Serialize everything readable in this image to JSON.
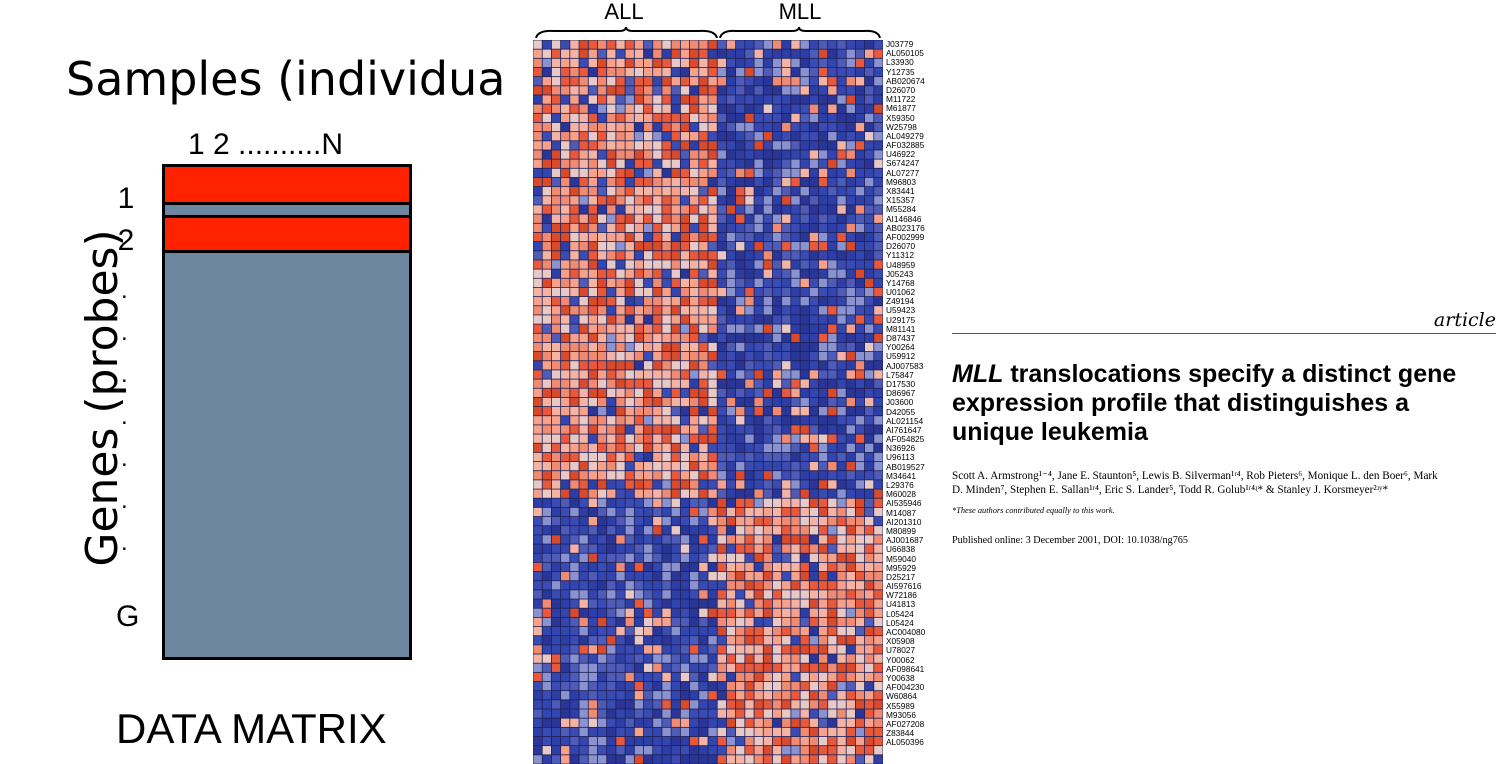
{
  "data_matrix": {
    "title": "Samples (individuals",
    "sample_axis": "1 2 ..........N",
    "genes_label": "Genes (probes)",
    "row_labels": [
      "1",
      "2",
      ".",
      ".",
      ".",
      ".",
      ".",
      ".",
      ".",
      "G"
    ],
    "caption": "DATA MATRIX",
    "colors": {
      "highlight_row": "#ff2200",
      "matrix_fill": "#6c86a0"
    }
  },
  "heatmap": {
    "groups": [
      "ALL",
      "MLL"
    ],
    "probes": [
      "J03779",
      "AL050105",
      "L33930",
      "Y12735",
      "AB020674",
      "D26070",
      "M11722",
      "M61877",
      "X59350",
      "W25798",
      "AL049279",
      "AF032885",
      "U46922",
      "S674247",
      "AL07277",
      "M96803",
      "X83441",
      "X15357",
      "M55284",
      "AI146846",
      "AB023176",
      "AF002999",
      "D26070",
      "Y11312",
      "U48959",
      "J05243",
      "Y14768",
      "U01062",
      "Z49194",
      "U59423",
      "U29175",
      "M81141",
      "D87437",
      "Y00264",
      "U59912",
      "AJ007583",
      "L75847",
      "D17530",
      "D86967",
      "J03600",
      "D42055",
      "AL021154",
      "AI761647",
      "AF054825",
      "N36926",
      "U96113",
      "AB019527",
      "M34641",
      "L29376",
      "M60028",
      "AI535946",
      "M14087",
      "AI201310",
      "M80899",
      "AJ001687",
      "U66838",
      "M59040",
      "M95929",
      "D25217",
      "AI597616",
      "W72186",
      "U41813",
      "L05424",
      "L05424",
      "AC004080",
      "X05908",
      "U78027",
      "Y00062",
      "AF098641",
      "Y00638",
      "AF004230",
      "W60864",
      "X55989",
      "M93056",
      "AF027208",
      "Z83844",
      "AL050396"
    ],
    "colors": {
      "high": "#d84a2a",
      "low": "#2d3ea6"
    }
  },
  "paper": {
    "section_tag": "article",
    "title_italic": "MLL",
    "title_rest": " translocations specify a distinct gene expression profile that distinguishes a unique leukemia",
    "authors_line1": "Scott A. Armstrong¹⁻⁴, Jane E. Staunton⁵, Lewis B. Silverman¹ʳ⁴, Rob Pieters⁶, Monique L. den Boer⁶, Mark",
    "authors_line2": "D. Minden⁷, Stephen E. Sallan¹ʳ⁴, Eric S. Lander⁵, Todd R. Golub¹ʳ⁴ʵ*  & Stanley J. Korsmeyer²ʴʸ*",
    "footnote": "*These authors contributed equally to this work.",
    "published": "Published online: 3 December 2001, DOI: 10.1038/ng765"
  }
}
